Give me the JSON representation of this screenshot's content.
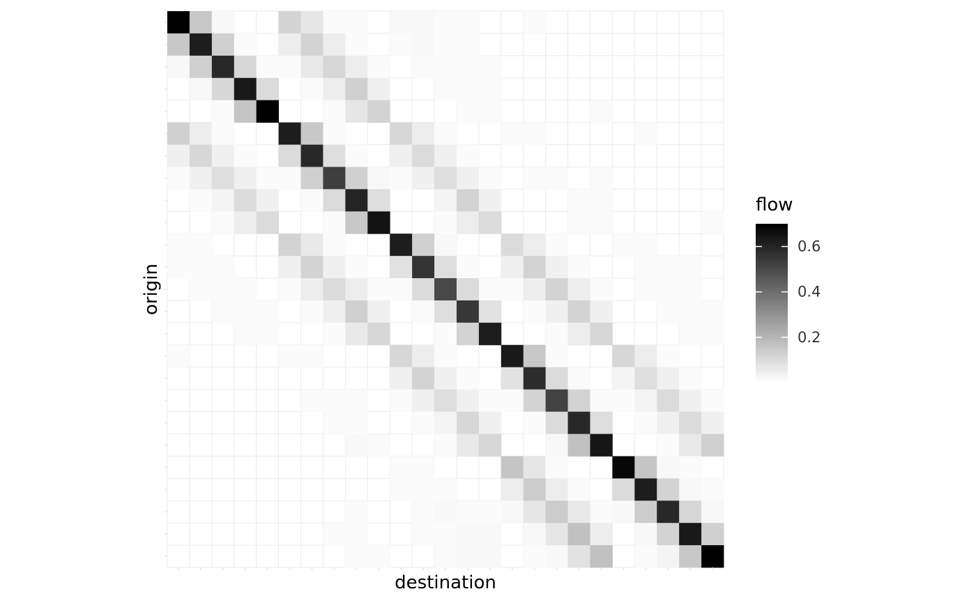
{
  "chart_data": {
    "type": "heatmap",
    "title": "",
    "xlabel": "destination",
    "ylabel": "origin",
    "legend": {
      "title": "flow",
      "ticks": [
        0.6,
        0.4,
        0.2
      ],
      "tick_labels": [
        "0.6",
        "0.4",
        "0.2"
      ],
      "range": [
        0.0,
        0.7
      ],
      "placement": "right",
      "color_low": "#ffffff",
      "color_high": "#000000"
    },
    "x_tick_labels_shown": false,
    "y_tick_labels_shown": false,
    "grid": true,
    "size": 25,
    "matrix": [
      [
        0.7,
        0.15,
        0.02,
        0.0,
        0.0,
        0.12,
        0.07,
        0.01,
        0.01,
        0.0,
        0.02,
        0.02,
        0.01,
        0.01,
        0.0,
        0.0,
        0.01,
        0.0,
        0.0,
        0.0,
        0.0,
        0.0,
        0.0,
        0.0,
        0.0
      ],
      [
        0.15,
        0.62,
        0.13,
        0.01,
        0.0,
        0.05,
        0.12,
        0.05,
        0.01,
        0.0,
        0.01,
        0.02,
        0.01,
        0.01,
        0.0,
        0.0,
        0.0,
        0.0,
        0.0,
        0.0,
        0.0,
        0.0,
        0.0,
        0.0,
        0.0
      ],
      [
        0.02,
        0.13,
        0.59,
        0.11,
        0.01,
        0.01,
        0.06,
        0.11,
        0.05,
        0.01,
        0.0,
        0.01,
        0.01,
        0.01,
        0.01,
        0.0,
        0.0,
        0.0,
        0.0,
        0.0,
        0.0,
        0.0,
        0.0,
        0.0,
        0.0
      ],
      [
        0.0,
        0.02,
        0.11,
        0.63,
        0.1,
        0.0,
        0.01,
        0.05,
        0.13,
        0.04,
        0.0,
        0.0,
        0.01,
        0.01,
        0.01,
        0.0,
        0.0,
        0.0,
        0.0,
        0.0,
        0.0,
        0.0,
        0.0,
        0.0,
        0.0
      ],
      [
        0.0,
        0.0,
        0.01,
        0.16,
        0.7,
        0.0,
        0.0,
        0.01,
        0.07,
        0.12,
        0.0,
        0.0,
        0.0,
        0.01,
        0.01,
        0.0,
        0.0,
        0.0,
        0.0,
        0.01,
        0.0,
        0.0,
        0.0,
        0.0,
        0.0
      ],
      [
        0.13,
        0.05,
        0.01,
        0.0,
        0.0,
        0.62,
        0.15,
        0.01,
        0.0,
        0.0,
        0.11,
        0.05,
        0.01,
        0.0,
        0.0,
        0.01,
        0.01,
        0.0,
        0.0,
        0.0,
        0.0,
        0.01,
        0.0,
        0.0,
        0.0
      ],
      [
        0.04,
        0.11,
        0.04,
        0.01,
        0.0,
        0.1,
        0.59,
        0.09,
        0.01,
        0.0,
        0.04,
        0.1,
        0.04,
        0.01,
        0.0,
        0.0,
        0.0,
        0.0,
        0.0,
        0.0,
        0.0,
        0.0,
        0.0,
        0.0,
        0.0
      ],
      [
        0.01,
        0.04,
        0.09,
        0.04,
        0.01,
        0.01,
        0.13,
        0.53,
        0.13,
        0.02,
        0.01,
        0.04,
        0.09,
        0.04,
        0.01,
        0.0,
        0.01,
        0.01,
        0.0,
        0.01,
        0.0,
        0.0,
        0.0,
        0.0,
        0.0
      ],
      [
        0.0,
        0.01,
        0.03,
        0.1,
        0.04,
        0.0,
        0.01,
        0.1,
        0.6,
        0.09,
        0.0,
        0.0,
        0.03,
        0.12,
        0.04,
        0.0,
        0.0,
        0.0,
        0.01,
        0.01,
        0.0,
        0.0,
        0.0,
        0.0,
        0.0
      ],
      [
        0.0,
        0.0,
        0.01,
        0.05,
        0.1,
        0.0,
        0.0,
        0.01,
        0.15,
        0.65,
        0.0,
        0.0,
        0.01,
        0.05,
        0.1,
        0.0,
        0.0,
        0.0,
        0.01,
        0.01,
        0.0,
        0.0,
        0.0,
        0.0,
        0.01
      ],
      [
        0.01,
        0.01,
        0.0,
        0.0,
        0.0,
        0.12,
        0.06,
        0.01,
        0.0,
        0.0,
        0.62,
        0.13,
        0.02,
        0.0,
        0.0,
        0.1,
        0.05,
        0.01,
        0.0,
        0.0,
        0.01,
        0.01,
        0.0,
        0.0,
        0.0
      ],
      [
        0.01,
        0.01,
        0.01,
        0.0,
        0.0,
        0.04,
        0.12,
        0.04,
        0.01,
        0.0,
        0.08,
        0.56,
        0.09,
        0.01,
        0.0,
        0.04,
        0.12,
        0.04,
        0.01,
        0.0,
        0.0,
        0.01,
        0.01,
        0.01,
        0.0
      ],
      [
        0.0,
        0.01,
        0.01,
        0.01,
        0.0,
        0.01,
        0.05,
        0.1,
        0.05,
        0.01,
        0.01,
        0.1,
        0.5,
        0.1,
        0.01,
        0.01,
        0.05,
        0.12,
        0.05,
        0.01,
        0.0,
        0.01,
        0.01,
        0.01,
        0.0
      ],
      [
        0.0,
        0.0,
        0.01,
        0.01,
        0.01,
        0.0,
        0.01,
        0.04,
        0.13,
        0.04,
        0.0,
        0.01,
        0.09,
        0.55,
        0.08,
        0.0,
        0.01,
        0.04,
        0.12,
        0.04,
        0.0,
        0.0,
        0.01,
        0.01,
        0.01
      ],
      [
        0.0,
        0.0,
        0.0,
        0.01,
        0.01,
        0.0,
        0.0,
        0.01,
        0.06,
        0.11,
        0.0,
        0.0,
        0.01,
        0.12,
        0.62,
        0.0,
        0.0,
        0.01,
        0.05,
        0.11,
        0.0,
        0.0,
        0.0,
        0.01,
        0.01
      ],
      [
        0.01,
        0.0,
        0.0,
        0.0,
        0.0,
        0.01,
        0.01,
        0.0,
        0.0,
        0.0,
        0.11,
        0.05,
        0.01,
        0.0,
        0.0,
        0.63,
        0.15,
        0.01,
        0.0,
        0.0,
        0.11,
        0.05,
        0.01,
        0.0,
        0.0
      ],
      [
        0.0,
        0.0,
        0.0,
        0.0,
        0.0,
        0.0,
        0.0,
        0.0,
        0.0,
        0.0,
        0.04,
        0.12,
        0.04,
        0.01,
        0.0,
        0.08,
        0.58,
        0.1,
        0.01,
        0.0,
        0.03,
        0.09,
        0.04,
        0.01,
        0.0
      ],
      [
        0.0,
        0.0,
        0.0,
        0.0,
        0.0,
        0.0,
        0.01,
        0.01,
        0.01,
        0.0,
        0.01,
        0.04,
        0.09,
        0.04,
        0.01,
        0.01,
        0.12,
        0.52,
        0.12,
        0.01,
        0.01,
        0.03,
        0.1,
        0.04,
        0.01
      ],
      [
        0.0,
        0.0,
        0.0,
        0.0,
        0.0,
        0.0,
        0.0,
        0.01,
        0.01,
        0.0,
        0.0,
        0.01,
        0.03,
        0.11,
        0.04,
        0.0,
        0.01,
        0.1,
        0.59,
        0.09,
        0.0,
        0.01,
        0.04,
        0.1,
        0.04
      ],
      [
        0.0,
        0.0,
        0.0,
        0.0,
        0.0,
        0.0,
        0.0,
        0.0,
        0.02,
        0.01,
        0.0,
        0.0,
        0.01,
        0.06,
        0.11,
        0.0,
        0.0,
        0.02,
        0.17,
        0.64,
        0.0,
        0.0,
        0.01,
        0.06,
        0.13
      ],
      [
        0.0,
        0.0,
        0.0,
        0.0,
        0.0,
        0.0,
        0.0,
        0.0,
        0.0,
        0.0,
        0.01,
        0.01,
        0.0,
        0.0,
        0.0,
        0.16,
        0.07,
        0.01,
        0.0,
        0.0,
        0.68,
        0.16,
        0.02,
        0.01,
        0.0
      ],
      [
        0.0,
        0.0,
        0.0,
        0.0,
        0.0,
        0.0,
        0.0,
        0.0,
        0.0,
        0.0,
        0.01,
        0.01,
        0.01,
        0.0,
        0.0,
        0.05,
        0.14,
        0.05,
        0.01,
        0.0,
        0.1,
        0.62,
        0.12,
        0.02,
        0.01
      ],
      [
        0.0,
        0.0,
        0.0,
        0.0,
        0.0,
        0.0,
        0.0,
        0.0,
        0.01,
        0.0,
        0.0,
        0.01,
        0.02,
        0.01,
        0.01,
        0.02,
        0.07,
        0.14,
        0.06,
        0.01,
        0.02,
        0.14,
        0.59,
        0.11,
        0.02
      ],
      [
        0.0,
        0.0,
        0.0,
        0.0,
        0.0,
        0.0,
        0.0,
        0.01,
        0.01,
        0.0,
        0.0,
        0.01,
        0.01,
        0.02,
        0.02,
        0.0,
        0.02,
        0.07,
        0.17,
        0.05,
        0.0,
        0.02,
        0.12,
        0.63,
        0.13
      ],
      [
        0.0,
        0.0,
        0.0,
        0.0,
        0.0,
        0.0,
        0.0,
        0.0,
        0.01,
        0.01,
        0.0,
        0.0,
        0.01,
        0.02,
        0.02,
        0.0,
        0.01,
        0.02,
        0.08,
        0.17,
        0.0,
        0.01,
        0.03,
        0.15,
        0.7
      ]
    ]
  }
}
